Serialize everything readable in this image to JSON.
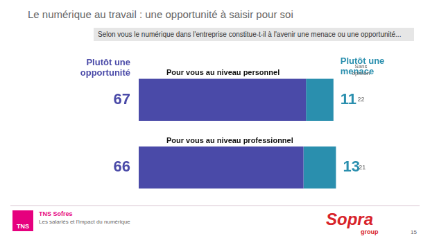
{
  "chart_data": {
    "type": "bar",
    "orientation": "horizontal",
    "stacked": true,
    "title": "Le numérique au travail : une opportunité à saisir pour soi",
    "subtitle": "Selon vous le numérique dans l'entreprise constitue-t-il à l'avenir une menace ou une opportunité...",
    "categories": [
      "Pour vous au niveau personnel",
      "Pour vous au niveau professionnel"
    ],
    "series": [
      {
        "name": "Plutôt une opportunité",
        "color": "#4a4aa8",
        "values": [
          67,
          66
        ]
      },
      {
        "name": "Plutôt une menace",
        "color": "#2a8fae",
        "values": [
          11,
          13
        ]
      },
      {
        "name": "Sans opinion",
        "color": "#ffffff",
        "values": [
          22,
          21
        ]
      }
    ],
    "xlim": [
      0,
      100
    ],
    "grid": false,
    "data_labels": true,
    "tick_labels": false
  },
  "footer": {
    "logo_left": "TNS",
    "source": "TNS Sofres",
    "study": "Les salariés et l'impact du numérique",
    "logo_right": "Sopra",
    "logo_right_sub": "group",
    "page": 15
  }
}
